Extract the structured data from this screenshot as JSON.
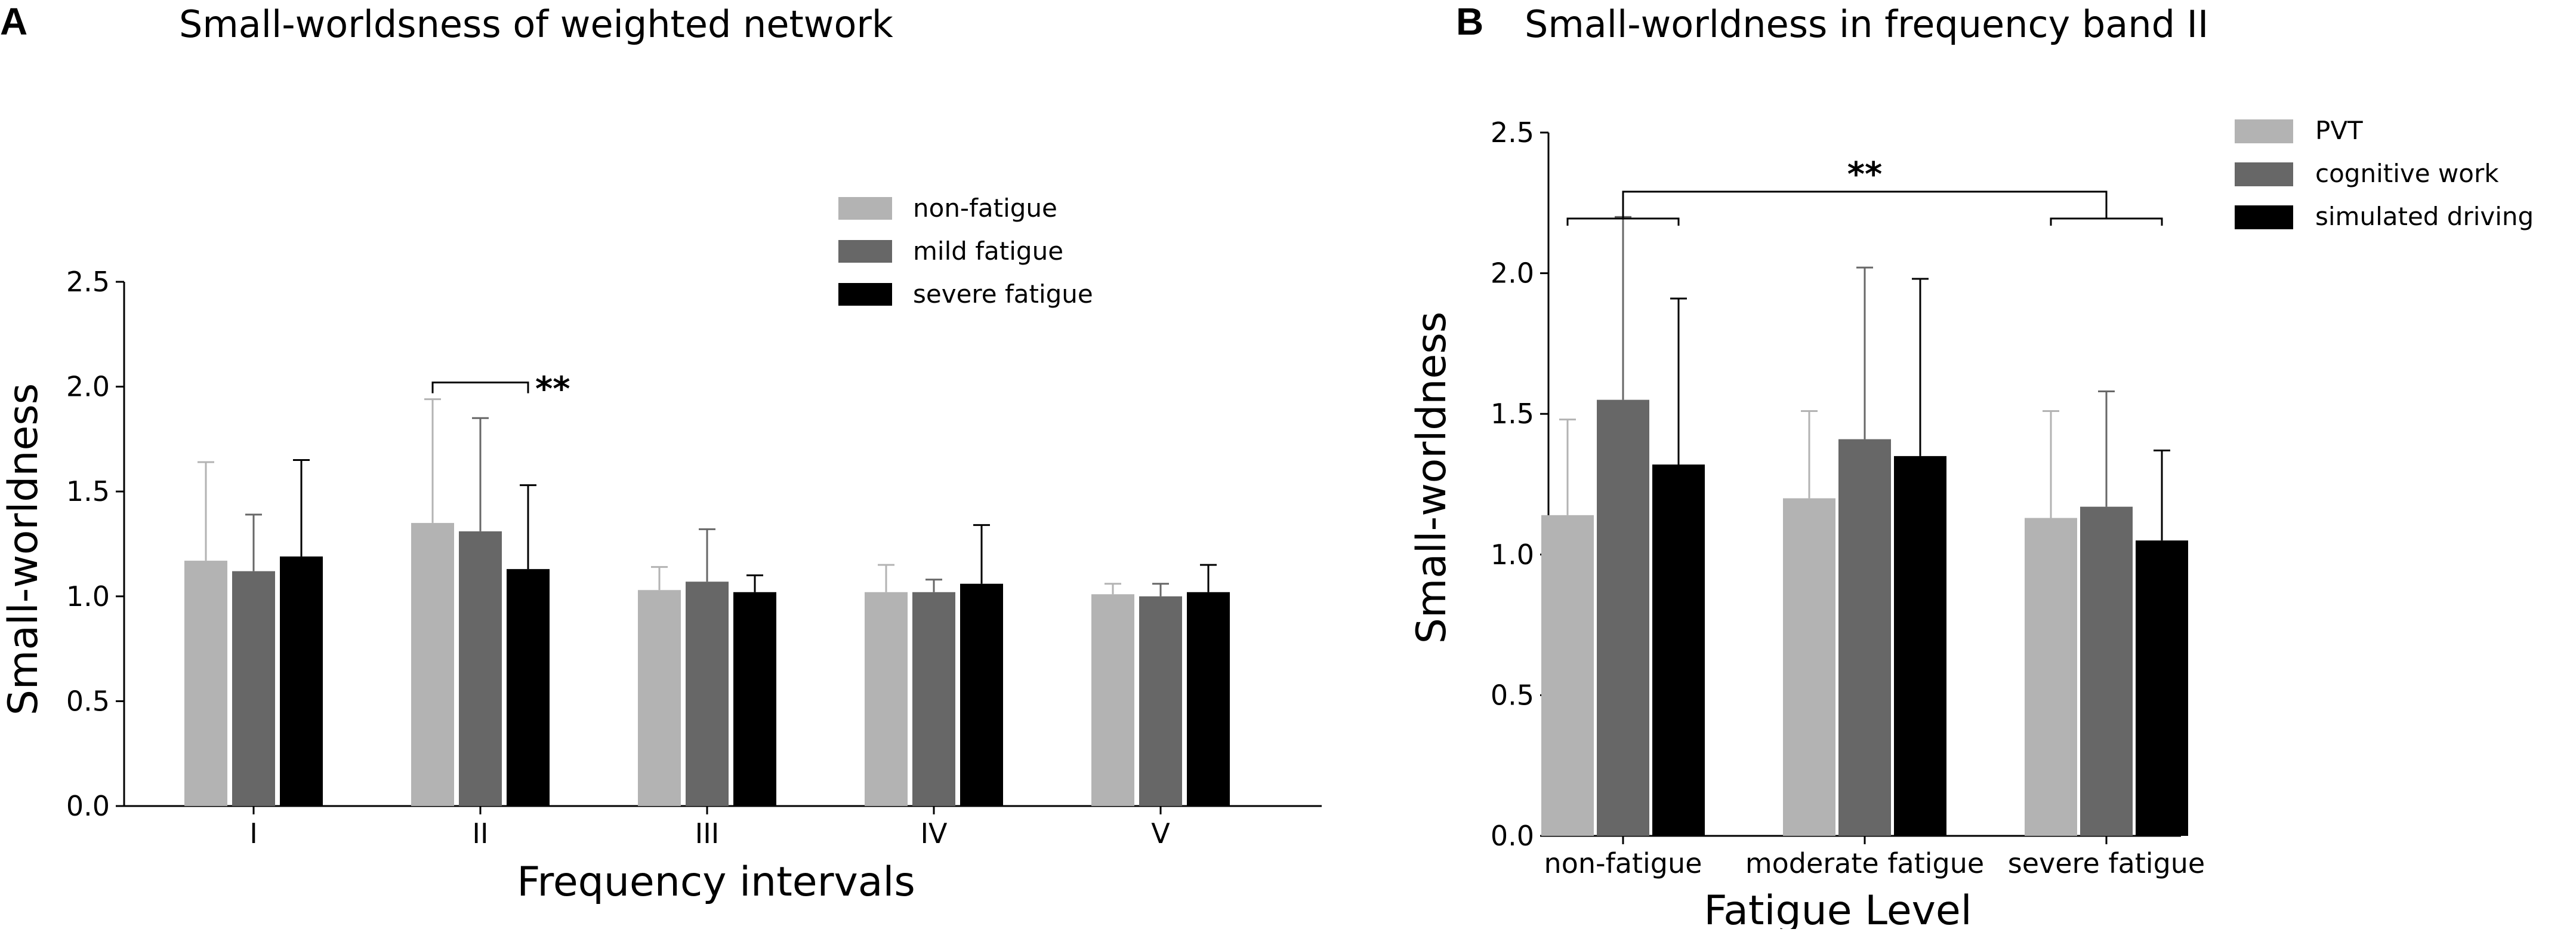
{
  "chart_data": [
    {
      "panel": "A",
      "type": "bar",
      "title": "Small-worldsness of weighted network",
      "xlabel": "Frequency intervals",
      "ylabel": "Small-worldness",
      "categories": [
        "I",
        "II",
        "III",
        "IV",
        "V"
      ],
      "ylim": [
        0,
        2.5
      ],
      "yticks": [
        "0.0",
        "0.5",
        "1.0",
        "1.5",
        "2.0",
        "2.5"
      ],
      "legend_position": "top-right",
      "grid": false,
      "series": [
        {
          "name": "non-fatigue",
          "color": "#b3b3b3",
          "values": [
            1.17,
            1.35,
            1.03,
            1.02,
            1.01
          ],
          "errors": [
            0.47,
            0.59,
            0.11,
            0.13,
            0.05
          ]
        },
        {
          "name": "mild fatigue",
          "color": "#676767",
          "values": [
            1.12,
            1.31,
            1.07,
            1.02,
            1.0
          ],
          "errors": [
            0.27,
            0.54,
            0.25,
            0.06,
            0.06
          ]
        },
        {
          "name": "severe fatigue",
          "color": "#000000",
          "values": [
            1.19,
            1.13,
            1.02,
            1.06,
            1.02
          ],
          "errors": [
            0.46,
            0.4,
            0.08,
            0.28,
            0.13
          ]
        }
      ],
      "annotations": [
        {
          "text": "**",
          "category": "II",
          "from_series": "non-fatigue",
          "to_series": "severe fatigue",
          "y": 2.02
        }
      ]
    },
    {
      "panel": "B",
      "type": "bar",
      "title": "Small-worldness in frequency band",
      "title_suffix": "II",
      "xlabel": "Fatigue Level",
      "ylabel": "Small-worldness",
      "categories": [
        "non-fatigue",
        "moderate fatigue",
        "severe fatigue"
      ],
      "ylim": [
        0,
        2.5
      ],
      "yticks": [
        "0.0",
        "0.5",
        "1.0",
        "1.5",
        "2.0",
        "2.5"
      ],
      "legend_position": "top-right",
      "grid": false,
      "series": [
        {
          "name": "PVT",
          "color": "#b3b3b3",
          "values": [
            1.14,
            1.2,
            1.13
          ],
          "errors": [
            0.34,
            0.31,
            0.38
          ]
        },
        {
          "name": "cognitive work",
          "color": "#676767",
          "values": [
            1.55,
            1.41,
            1.17
          ],
          "errors": [
            0.65,
            0.61,
            0.41
          ]
        },
        {
          "name": "simulated driving",
          "color": "#000000",
          "values": [
            1.32,
            1.35,
            1.05
          ],
          "errors": [
            0.59,
            0.63,
            0.32
          ]
        }
      ],
      "annotations": [
        {
          "text": "**",
          "from_category": "non-fatigue",
          "to_category": "severe fatigue",
          "y": 2.29
        }
      ]
    }
  ]
}
